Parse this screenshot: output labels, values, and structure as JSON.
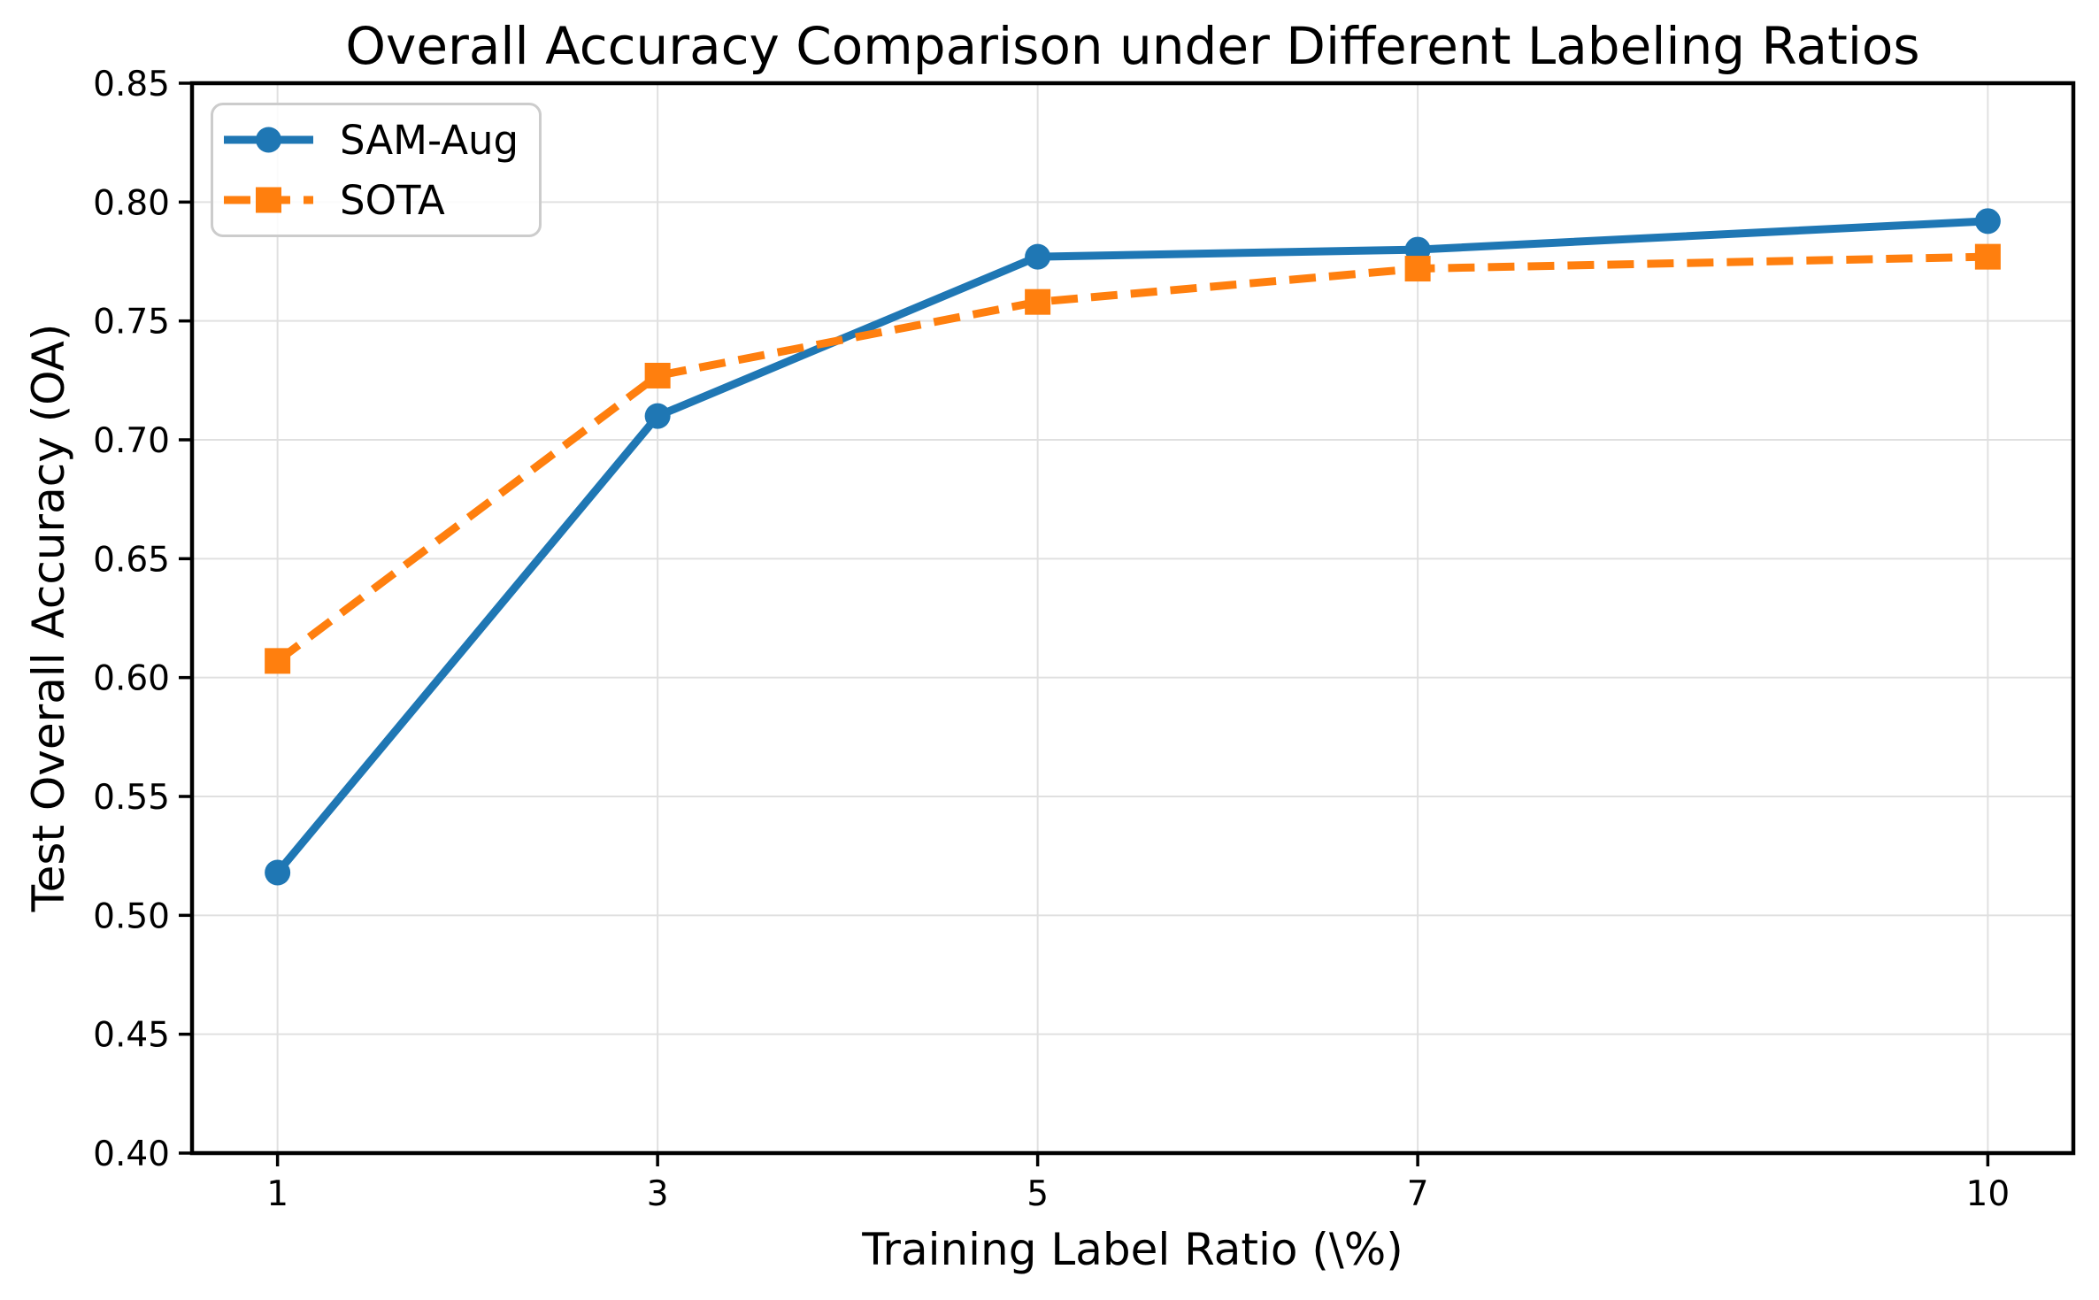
{
  "chart_data": {
    "type": "line",
    "title": "Overall Accuracy Comparison under Different Labeling Ratios",
    "xlabel": "Training Label Ratio (\\%)",
    "ylabel": "Test Overall Accuracy (OA)",
    "x": [
      1,
      3,
      5,
      7,
      10
    ],
    "xtick_labels": [
      "1",
      "3",
      "5",
      "7",
      "10"
    ],
    "ytick_values": [
      0.4,
      0.45,
      0.5,
      0.55,
      0.6,
      0.65,
      0.7,
      0.75,
      0.8,
      0.85
    ],
    "ytick_labels": [
      "0.40",
      "0.45",
      "0.50",
      "0.55",
      "0.60",
      "0.65",
      "0.70",
      "0.75",
      "0.80",
      "0.85"
    ],
    "xlim": [
      0.55,
      10.45
    ],
    "ylim": [
      0.4,
      0.85
    ],
    "grid": true,
    "grid_color": "#e0e0e0",
    "axis_color": "#000000",
    "legend_position": "upper-left",
    "series": [
      {
        "name": "SAM-Aug",
        "color": "#1f77b4",
        "linestyle": "solid",
        "marker": "circle",
        "values": [
          0.518,
          0.71,
          0.777,
          0.78,
          0.792
        ]
      },
      {
        "name": "SOTA",
        "color": "#ff7f0e",
        "linestyle": "dashed",
        "marker": "square",
        "values": [
          0.607,
          0.727,
          0.758,
          0.772,
          0.777
        ]
      }
    ]
  }
}
